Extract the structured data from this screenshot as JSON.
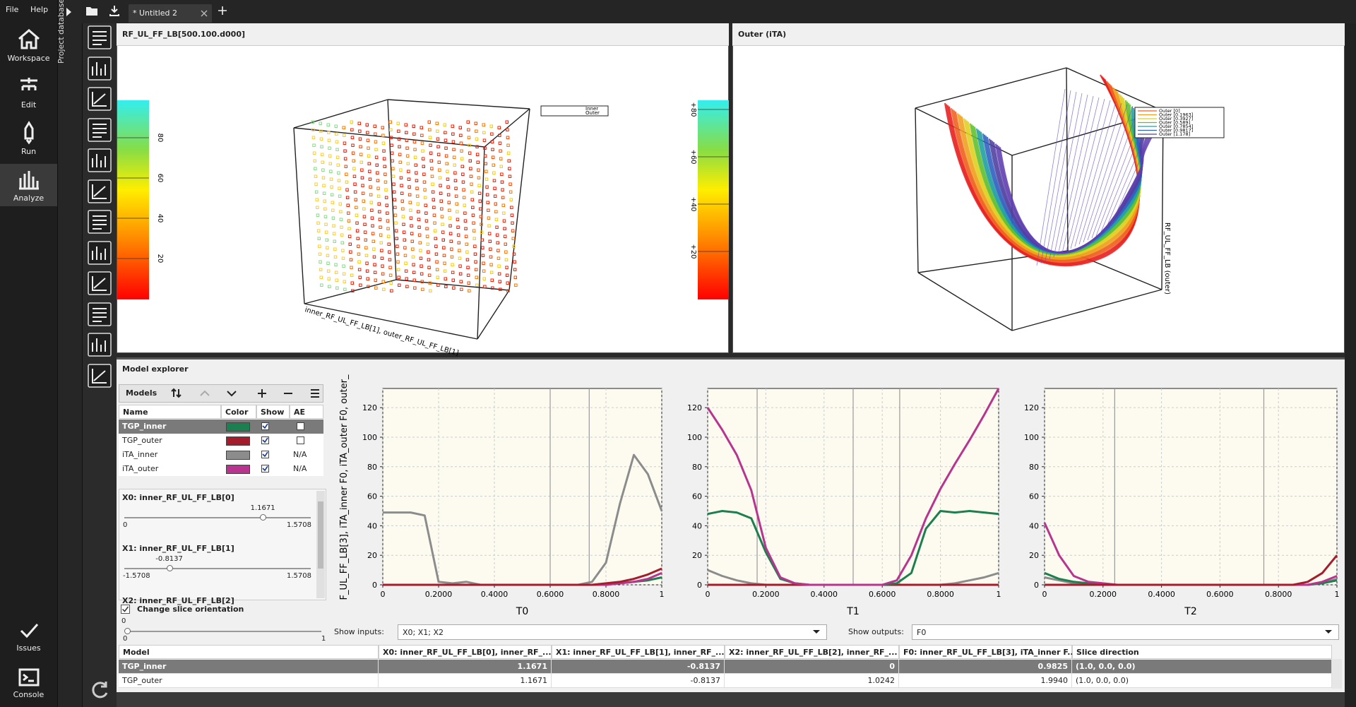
{
  "menu": [
    "File",
    "Help"
  ],
  "nav": [
    "Workspace",
    "Edit",
    "Run",
    "Analyze",
    "Issues",
    "Console"
  ],
  "sidebar_label": "Project database",
  "tab": "* Untitled 2",
  "plot3d_left": {
    "title": "RF_UL_FF_LB[500.100.d000]",
    "colorbar_ticks": [
      "20",
      "40",
      "60",
      "80"
    ],
    "colorbar2_ticks": [
      "+20",
      "+40",
      "+60",
      "+80"
    ],
    "legend": [
      "Inner",
      "Outer"
    ],
    "axis_label": "inner_RF_UL_FF_LB[1], outer_RF_UL_FF_LB[1]"
  },
  "plot3d_right": {
    "title": "Outer (iTA)",
    "legend": [
      "Outer [0]",
      "Outer [0.1963]",
      "Outer [0.3927]",
      "Outer [0.589]",
      "Outer [0.7854]",
      "Outer [0.9817]",
      "Outer [1.178]"
    ],
    "axis_label": "RF_UL_FF_LB (outer)"
  },
  "explorer": {
    "title": "Model explorer",
    "models_label": "Models",
    "columns": [
      "Name",
      "Color",
      "Show",
      "AE"
    ],
    "models": [
      {
        "name": "TGP_inner",
        "color": "#1b7f4f",
        "show": true,
        "ae": false
      },
      {
        "name": "TGP_outer",
        "color": "#a51d2d",
        "show": true,
        "ae": false
      },
      {
        "name": "iTA_inner",
        "color": "#8c8c8c",
        "show": true,
        "ae": "N/A"
      },
      {
        "name": "iTA_outer",
        "color": "#b8348f",
        "show": true,
        "ae": "N/A"
      }
    ],
    "sliders": [
      {
        "label": "X0: inner_RF_UL_FF_LB[0]",
        "value": 1.1671,
        "min": 0,
        "max": 1.5708
      },
      {
        "label": "X1: inner_RF_UL_FF_LB[1]",
        "value": -0.8137,
        "min": -1.5708,
        "max": 1.5708
      },
      {
        "label": "X2: inner_RF_UL_FF_LB[2]"
      }
    ],
    "orientation": {
      "label": "Change slice orientation",
      "value": 0,
      "min": 0,
      "max": 1
    },
    "show_inputs_label": "Show inputs:",
    "show_inputs": "X0; X1; X2",
    "show_outputs_label": "Show outputs:",
    "show_outputs": "F0",
    "y_label": "F_UL_FF_LB[3], iTA_inner F0, iTA_outer F0, outer_",
    "slices": [
      {
        "xlabel": "T0",
        "xlim": [
          0,
          1
        ],
        "ylim": [
          0,
          133
        ],
        "xticks": [
          0,
          {
            "value": 0.2,
            "label": "0.2000"
          },
          {
            "value": 0.4,
            "label": "0.4000"
          },
          {
            "value": 0.6,
            "label": "0.6000"
          },
          {
            "value": 0.8,
            "label": "0.8000"
          },
          1
        ],
        "yticks": [
          0,
          20,
          40,
          60,
          80,
          100,
          120
        ],
        "markers": [
          0.6,
          0.74
        ],
        "x": [
          0,
          0.05,
          0.1,
          0.15,
          0.2,
          0.25,
          0.3,
          0.35,
          0.4,
          0.45,
          0.5,
          0.55,
          0.6,
          0.65,
          0.7,
          0.75,
          0.8,
          0.85,
          0.9,
          0.95,
          1
        ],
        "series": [
          {
            "name": "iTA_inner",
            "color": "#8c8c8c",
            "values": [
              49,
              49,
              49,
              47,
              2,
              1,
              2,
              0,
              0,
              0,
              0,
              0,
              0,
              0,
              0,
              2,
              15,
              55,
              88,
              75,
              50
            ]
          },
          {
            "name": "TGP_inner",
            "color": "#1b7f4f",
            "values": [
              0,
              0,
              0,
              0,
              0,
              0,
              0,
              0,
              0,
              0,
              0,
              0,
              0,
              0,
              0,
              0,
              0,
              1,
              2,
              3,
              5
            ]
          },
          {
            "name": "iTA_outer",
            "color": "#b8348f",
            "values": [
              0,
              0,
              0,
              0,
              0,
              0,
              0,
              0,
              0,
              0,
              0,
              0,
              0,
              0,
              0,
              0,
              0,
              1,
              2,
              4,
              8
            ]
          },
          {
            "name": "TGP_outer",
            "color": "#a51d2d",
            "values": [
              0,
              0,
              0,
              0,
              0,
              0,
              0,
              0,
              0,
              0,
              0,
              0,
              0,
              0,
              0,
              0,
              1,
              2,
              4,
              7,
              11
            ]
          }
        ]
      },
      {
        "xlabel": "T1",
        "xlim": [
          0,
          1
        ],
        "ylim": [
          0,
          133
        ],
        "xticks": [
          0,
          {
            "value": 0.2,
            "label": "0.2000"
          },
          {
            "value": 0.4,
            "label": "0.4000"
          },
          {
            "value": 0.6,
            "label": "0.6000"
          },
          {
            "value": 0.8,
            "label": "0.8000"
          },
          1
        ],
        "yticks": [
          0,
          20,
          40,
          60,
          80,
          100,
          120
        ],
        "markers": [
          0.17,
          0.5,
          0.66
        ],
        "x": [
          0,
          0.05,
          0.1,
          0.15,
          0.2,
          0.25,
          0.3,
          0.35,
          0.4,
          0.45,
          0.5,
          0.55,
          0.6,
          0.65,
          0.7,
          0.75,
          0.8,
          0.85,
          0.9,
          0.95,
          1
        ],
        "series": [
          {
            "name": "iTA_inner",
            "color": "#8c8c8c",
            "values": [
              10,
              6,
              3,
              1,
              0,
              0,
              0,
              0,
              0,
              0,
              0,
              0,
              0,
              0,
              0,
              0,
              0,
              1,
              3,
              5,
              8
            ]
          },
          {
            "name": "TGP_outer",
            "color": "#a51d2d",
            "values": [
              0,
              0,
              0,
              0,
              0,
              0,
              0,
              0,
              0,
              0,
              0,
              0,
              0,
              0,
              0,
              0,
              0,
              0,
              0,
              0,
              0
            ]
          },
          {
            "name": "TGP_inner",
            "color": "#1b7f4f",
            "values": [
              48,
              50,
              49,
              45,
              22,
              4,
              1,
              0,
              0,
              0,
              0,
              0,
              0,
              1,
              8,
              38,
              50,
              49,
              50,
              49,
              48
            ]
          },
          {
            "name": "iTA_outer",
            "color": "#b8348f",
            "values": [
              120,
              105,
              88,
              64,
              25,
              5,
              1,
              0,
              0,
              0,
              0,
              0,
              0,
              3,
              20,
              45,
              65,
              82,
              98,
              115,
              133
            ]
          }
        ]
      },
      {
        "xlabel": "T2",
        "xlim": [
          0,
          1
        ],
        "ylim": [
          0,
          133
        ],
        "xticks": [
          0,
          {
            "value": 0.2,
            "label": "0.2000"
          },
          {
            "value": 0.4,
            "label": "0.4000"
          },
          {
            "value": 0.6,
            "label": "0.6000"
          },
          {
            "value": 0.8,
            "label": "0.8000"
          },
          1
        ],
        "yticks": [
          0,
          20,
          40,
          60,
          80,
          100,
          120
        ],
        "markers": [
          0.24,
          0.75
        ],
        "x": [
          0,
          0.05,
          0.1,
          0.15,
          0.2,
          0.25,
          0.3,
          0.35,
          0.4,
          0.45,
          0.5,
          0.55,
          0.6,
          0.65,
          0.7,
          0.75,
          0.8,
          0.85,
          0.9,
          0.95,
          1
        ],
        "series": [
          {
            "name": "iTA_inner",
            "color": "#8c8c8c",
            "values": [
              5,
              3,
              1,
              0,
              0,
              0,
              0,
              0,
              0,
              0,
              0,
              0,
              0,
              0,
              0,
              0,
              0,
              0,
              0,
              1,
              4
            ]
          },
          {
            "name": "TGP_inner",
            "color": "#1b7f4f",
            "values": [
              8,
              4,
              2,
              1,
              0,
              0,
              0,
              0,
              0,
              0,
              0,
              0,
              0,
              0,
              0,
              0,
              0,
              0,
              0,
              1,
              3
            ]
          },
          {
            "name": "iTA_outer",
            "color": "#b8348f",
            "values": [
              42,
              20,
              6,
              2,
              1,
              0,
              0,
              0,
              0,
              0,
              0,
              0,
              0,
              0,
              0,
              0,
              0,
              0,
              0,
              2,
              6
            ]
          },
          {
            "name": "TGP_outer",
            "color": "#a51d2d",
            "values": [
              0,
              0,
              0,
              0,
              0,
              0,
              0,
              0,
              0,
              0,
              0,
              0,
              0,
              0,
              0,
              0,
              0,
              0,
              2,
              8,
              20
            ]
          }
        ]
      }
    ],
    "table": {
      "columns": [
        "Model",
        "X0: inner_RF_UL_FF_LB[0], inner_RF_...",
        "X1: inner_RF_UL_FF_LB[1], inner_RF_...",
        "X2: inner_RF_UL_FF_LB[2], inner_RF_...",
        "F0: inner_RF_UL_FF_LB[3], iTA_inner F...",
        "Slice direction"
      ],
      "rows": [
        [
          "TGP_inner",
          "1.1671",
          "-0.8137",
          "0",
          "0.9825",
          "(1.0, 0.0, 0.0)"
        ],
        [
          "TGP_outer",
          "1.1671",
          "-0.8137",
          "1.0242",
          "1.9940",
          "(1.0, 0.0, 0.0)"
        ]
      ]
    }
  }
}
